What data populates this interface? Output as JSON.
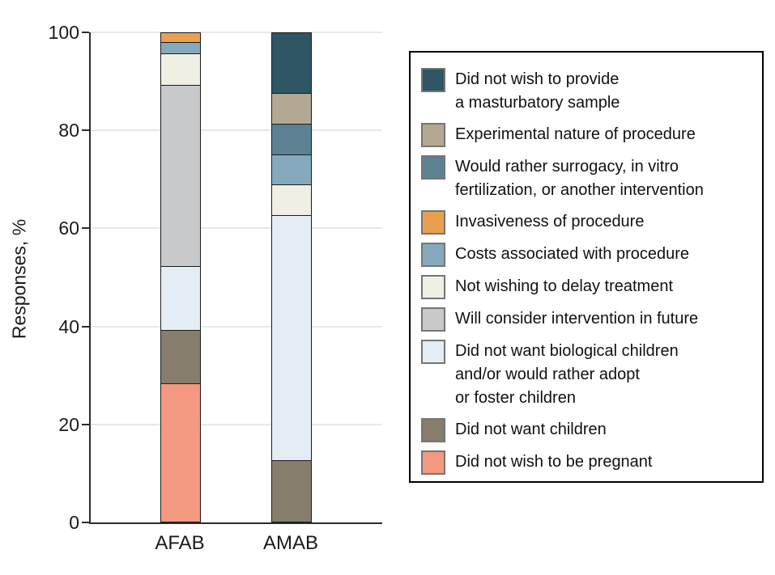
{
  "figure": {
    "background": "#ffffff",
    "axis_color": "#2b2b2b",
    "gridline_color": "#e8e8e8"
  },
  "chart_data": {
    "type": "bar",
    "subtype": "stacked_vertical",
    "title": "",
    "xlabel": "",
    "ylabel": "Responses, %",
    "ylim": [
      0,
      100
    ],
    "yticks": [
      0,
      20,
      40,
      60,
      80,
      100
    ],
    "grid": true,
    "legend_position": "right",
    "categories": [
      "AFAB",
      "AMAB"
    ],
    "series": [
      {
        "name": "Did not wish to provide a masturbatory sample",
        "label_lines": [
          "Did not wish to provide",
          "a masturbatory sample"
        ],
        "color": "#2E5665",
        "values": [
          0,
          12.5
        ]
      },
      {
        "name": "Experimental nature of procedure",
        "label_lines": [
          "Experimental nature of procedure"
        ],
        "color": "#B3A892",
        "values": [
          0,
          6.25
        ]
      },
      {
        "name": "Would rather surrogacy, in vitro fertilization, or another intervention",
        "label_lines": [
          "Would rather surrogacy, in vitro",
          "fertilization, or another intervention"
        ],
        "color": "#5C8192",
        "values": [
          0,
          6.25
        ]
      },
      {
        "name": "Invasiveness of procedure",
        "label_lines": [
          "Invasiveness of procedure"
        ],
        "color": "#E8A04F",
        "values": [
          2.2,
          0
        ]
      },
      {
        "name": "Costs associated with procedure",
        "label_lines": [
          "Costs associated with procedure"
        ],
        "color": "#85A9BC",
        "values": [
          2.2,
          6.25
        ]
      },
      {
        "name": "Not wishing to delay treatment",
        "label_lines": [
          "Not wishing to delay treatment"
        ],
        "color": "#F0EFE4",
        "values": [
          6.5,
          6.25
        ]
      },
      {
        "name": "Will consider intervention in future",
        "label_lines": [
          "Will consider intervention in future"
        ],
        "color": "#C7C9CB",
        "values": [
          37,
          0
        ]
      },
      {
        "name": "Did not want biological children and/or would rather adopt or foster children",
        "label_lines": [
          "Did not want biological children",
          "and/or would rather adopt",
          "or foster children"
        ],
        "color": "#E3EDF3",
        "values": [
          13,
          50
        ]
      },
      {
        "name": "Did not want children",
        "label_lines": [
          "Did not want children"
        ],
        "color": "#877D6D",
        "values": [
          10.9,
          12.5
        ]
      },
      {
        "name": "Did not wish to be pregnant",
        "label_lines": [
          "Did not wish to be pregnant"
        ],
        "color": "#F2997F",
        "values": [
          28.3,
          0
        ]
      }
    ]
  }
}
